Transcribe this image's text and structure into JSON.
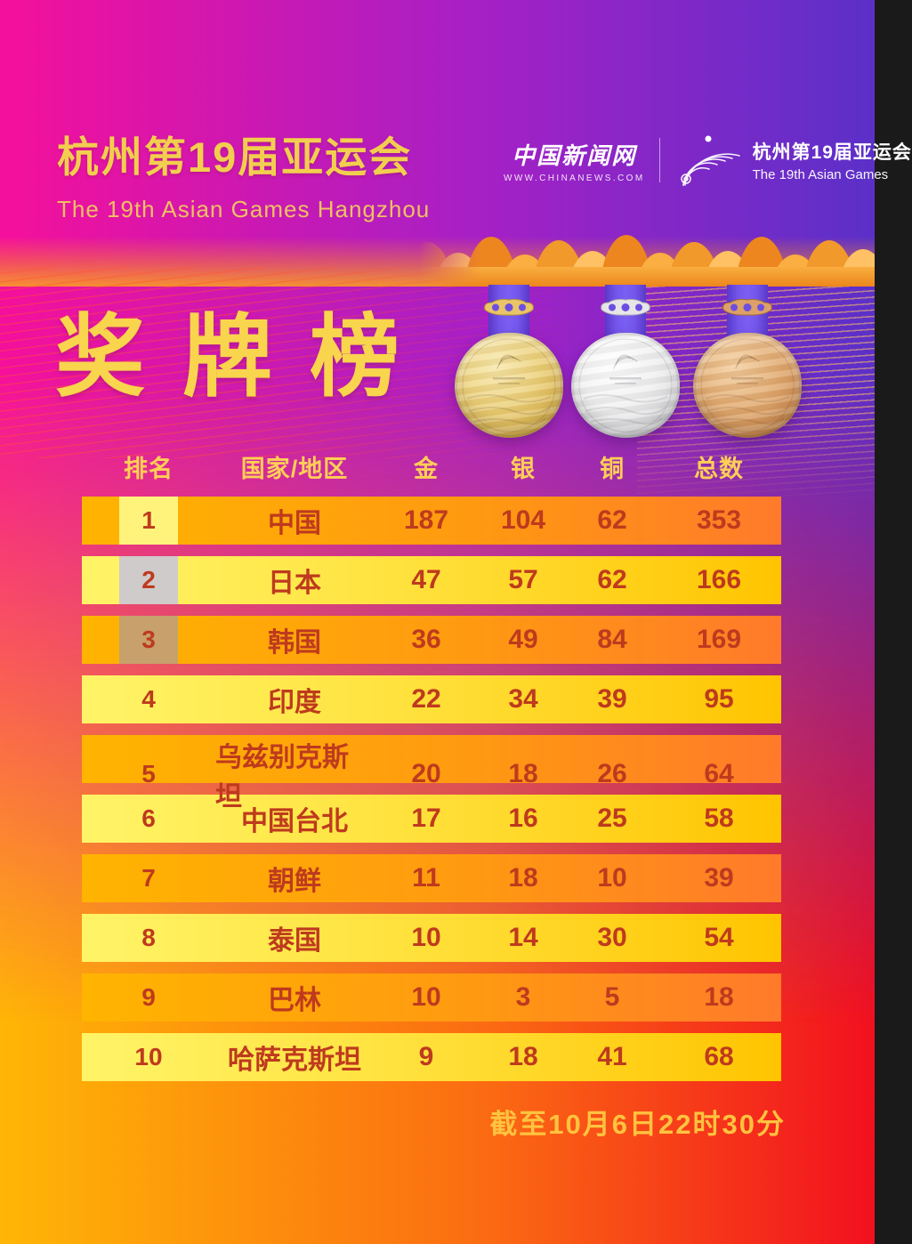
{
  "header": {
    "title_cn": "杭州第19届亚运会",
    "title_en": "The 19th Asian Games Hangzhou",
    "section_title": "奖牌榜"
  },
  "brand": {
    "chinanews_name": "中国新闻网",
    "chinanews_url": "WWW.CHINANEWS.COM",
    "games_title_cn": "杭州第19届亚运会",
    "games_title_en": "The 19th Asian Games"
  },
  "medals": {
    "gold_icon": "gold-medal",
    "silver_icon": "silver-medal",
    "bronze_icon": "bronze-medal"
  },
  "table": {
    "headers": {
      "rank": "排名",
      "country": "国家/地区",
      "gold": "金",
      "silver": "银",
      "bronze": "铜",
      "total": "总数"
    },
    "rows": [
      {
        "rank": "1",
        "country": "中国",
        "gold": "187",
        "silver": "104",
        "bronze": "62",
        "total": "353"
      },
      {
        "rank": "2",
        "country": "日本",
        "gold": "47",
        "silver": "57",
        "bronze": "62",
        "total": "166"
      },
      {
        "rank": "3",
        "country": "韩国",
        "gold": "36",
        "silver": "49",
        "bronze": "84",
        "total": "169"
      },
      {
        "rank": "4",
        "country": "印度",
        "gold": "22",
        "silver": "34",
        "bronze": "39",
        "total": "95"
      },
      {
        "rank": "5",
        "country": "乌兹别克斯坦",
        "gold": "20",
        "silver": "18",
        "bronze": "26",
        "total": "64"
      },
      {
        "rank": "6",
        "country": "中国台北",
        "gold": "17",
        "silver": "16",
        "bronze": "25",
        "total": "58"
      },
      {
        "rank": "7",
        "country": "朝鲜",
        "gold": "11",
        "silver": "18",
        "bronze": "10",
        "total": "39"
      },
      {
        "rank": "8",
        "country": "泰国",
        "gold": "10",
        "silver": "14",
        "bronze": "30",
        "total": "54"
      },
      {
        "rank": "9",
        "country": "巴林",
        "gold": "10",
        "silver": "3",
        "bronze": "5",
        "total": "18"
      },
      {
        "rank": "10",
        "country": "哈萨克斯坦",
        "gold": "9",
        "silver": "18",
        "bronze": "41",
        "total": "68"
      }
    ]
  },
  "footer": {
    "note": "截至10月6日22时30分"
  },
  "colors": {
    "accent_gold_text": "#F9D44D",
    "table_header_gold": "#FFCF56",
    "row_text_red": "#BE3A1E",
    "bg_top_left": "#F5109B",
    "bg_top_right": "#5B30C8",
    "bg_bottom_left": "#FFB606",
    "bg_bottom_right": "#F2101F",
    "ribbon_purple": "#6C4FE0",
    "badge_gold": "#FFF37C",
    "badge_silver": "#CFCBCA",
    "badge_bronze": "#C7A06B"
  },
  "chart_data": {
    "type": "table",
    "title": "奖牌榜",
    "subtitle": "杭州第19届亚运会 / The 19th Asian Games Hangzhou",
    "columns": [
      "排名",
      "国家/地区",
      "金",
      "银",
      "铜",
      "总数"
    ],
    "rows": [
      [
        1,
        "中国",
        187,
        104,
        62,
        353
      ],
      [
        2,
        "日本",
        47,
        57,
        62,
        166
      ],
      [
        3,
        "韩国",
        36,
        49,
        84,
        169
      ],
      [
        4,
        "印度",
        22,
        34,
        39,
        95
      ],
      [
        5,
        "乌兹别克斯坦",
        20,
        18,
        26,
        64
      ],
      [
        6,
        "中国台北",
        17,
        16,
        25,
        58
      ],
      [
        7,
        "朝鲜",
        11,
        18,
        10,
        39
      ],
      [
        8,
        "泰国",
        10,
        14,
        30,
        54
      ],
      [
        9,
        "巴林",
        10,
        3,
        5,
        18
      ],
      [
        10,
        "哈萨克斯坦",
        9,
        18,
        41,
        68
      ]
    ],
    "footnote": "截至10月6日22时30分"
  }
}
